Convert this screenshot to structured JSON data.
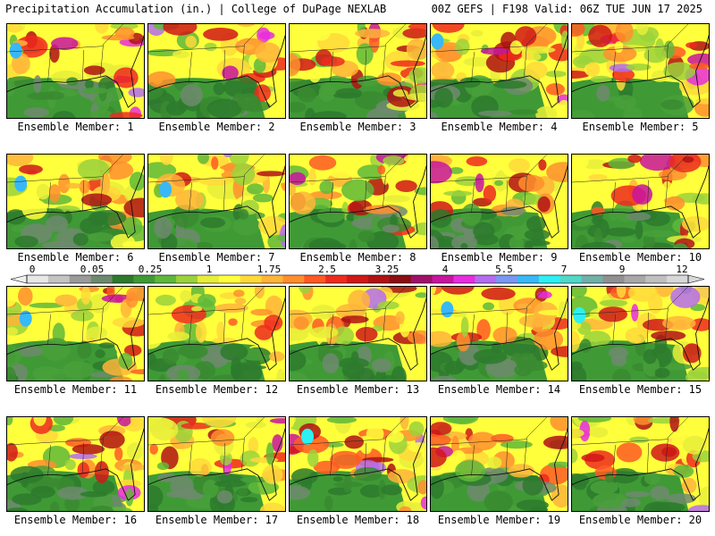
{
  "header": {
    "title": "Precipitation Accumulation (in.) | College of DuPage NEXLAB",
    "run_info": "00Z GEFS | F198 Valid: 06Z TUE JUN 17 2025"
  },
  "caption_prefix": "Ensemble Member: ",
  "members": [
    {
      "label": "Ensemble Member: 1"
    },
    {
      "label": "Ensemble Member: 2"
    },
    {
      "label": "Ensemble Member: 3"
    },
    {
      "label": "Ensemble Member: 4"
    },
    {
      "label": "Ensemble Member: 5"
    },
    {
      "label": "Ensemble Member: 6"
    },
    {
      "label": "Ensemble Member: 7"
    },
    {
      "label": "Ensemble Member: 8"
    },
    {
      "label": "Ensemble Member: 9"
    },
    {
      "label": "Ensemble Member: 10"
    },
    {
      "label": "Ensemble Member: 11"
    },
    {
      "label": "Ensemble Member: 12"
    },
    {
      "label": "Ensemble Member: 13"
    },
    {
      "label": "Ensemble Member: 14"
    },
    {
      "label": "Ensemble Member: 15"
    },
    {
      "label": "Ensemble Member: 16"
    },
    {
      "label": "Ensemble Member: 17"
    },
    {
      "label": "Ensemble Member: 18"
    },
    {
      "label": "Ensemble Member: 19"
    },
    {
      "label": "Ensemble Member: 20"
    }
  ],
  "colorbar": {
    "tick_labels": [
      "0",
      "0.05",
      "0.25",
      "1",
      "1.75",
      "2.5",
      "3.25",
      "4",
      "5.5",
      "7",
      "9",
      "12"
    ],
    "colors": [
      "#e8e8e8",
      "#c4c4c4",
      "#9a9a9a",
      "#6e8a6e",
      "#2d7a2d",
      "#3f9a35",
      "#5fb83a",
      "#9bd23b",
      "#e8ee3a",
      "#ffff3c",
      "#ffd93a",
      "#ffb43a",
      "#ff8f2e",
      "#ff5a24",
      "#ef2a1e",
      "#d01818",
      "#b01214",
      "#8a0e12",
      "#a0106a",
      "#c814a0",
      "#e82ce0",
      "#b46cf0",
      "#7898f2",
      "#38b8f6",
      "#2cf0f4",
      "#50d8c8",
      "#70b0a8",
      "#909090",
      "#a8a8a8",
      "#c0c0c0",
      "#d8d8d8"
    ]
  }
}
